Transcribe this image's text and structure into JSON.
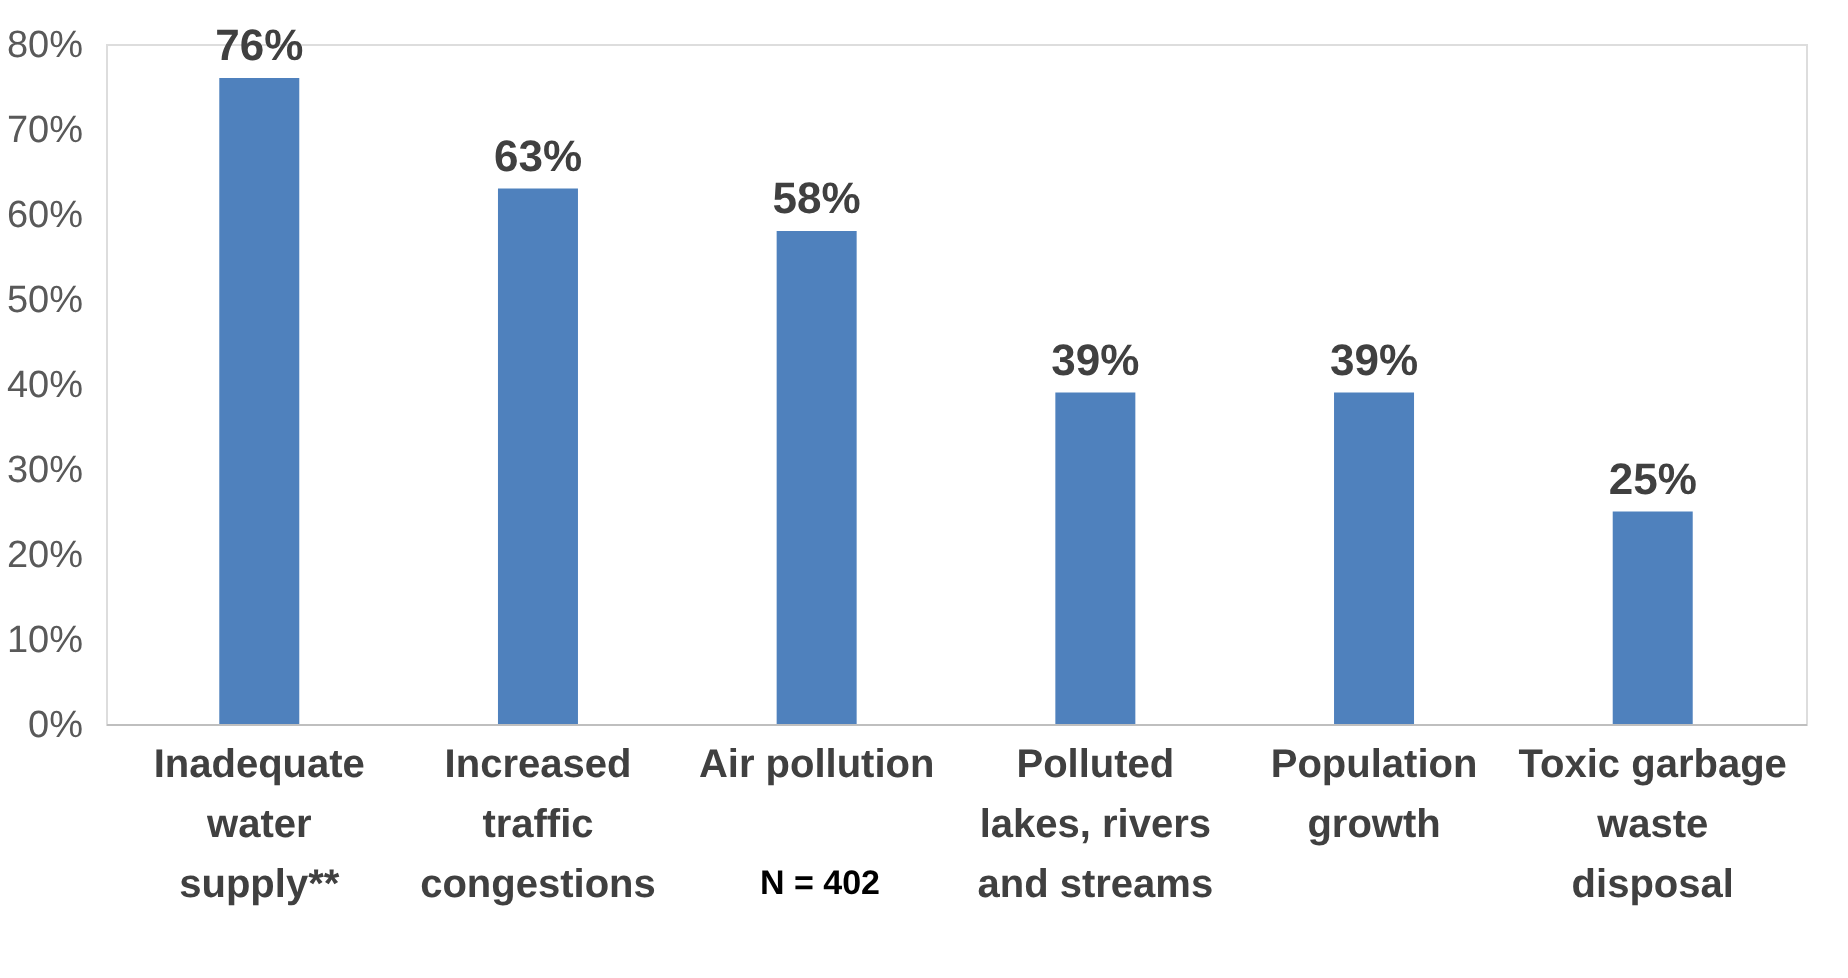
{
  "chart_data": {
    "type": "bar",
    "categories": [
      "Inadequate water supply**",
      "Increased traffic congestions",
      "Air pollution",
      "Polluted lakes, rivers and streams",
      "Population growth",
      "Toxic garbage waste disposal"
    ],
    "values": [
      76,
      63,
      58,
      39,
      39,
      25
    ],
    "value_labels": [
      "76%",
      "63%",
      "58%",
      "39%",
      "39%",
      "25%"
    ],
    "color": "#4f81bd",
    "ylim": [
      0,
      80
    ],
    "yticks": [
      {
        "value": 0,
        "label": "0%"
      },
      {
        "value": 10,
        "label": "10%"
      },
      {
        "value": 20,
        "label": "20%"
      },
      {
        "value": 30,
        "label": "30%"
      },
      {
        "value": 40,
        "label": "40%"
      },
      {
        "value": 50,
        "label": "50%"
      },
      {
        "value": 60,
        "label": "60%"
      },
      {
        "value": 70,
        "label": "70%"
      },
      {
        "value": 80,
        "label": "80%"
      }
    ],
    "grid": false,
    "annotations": [
      "N = 402"
    ]
  }
}
